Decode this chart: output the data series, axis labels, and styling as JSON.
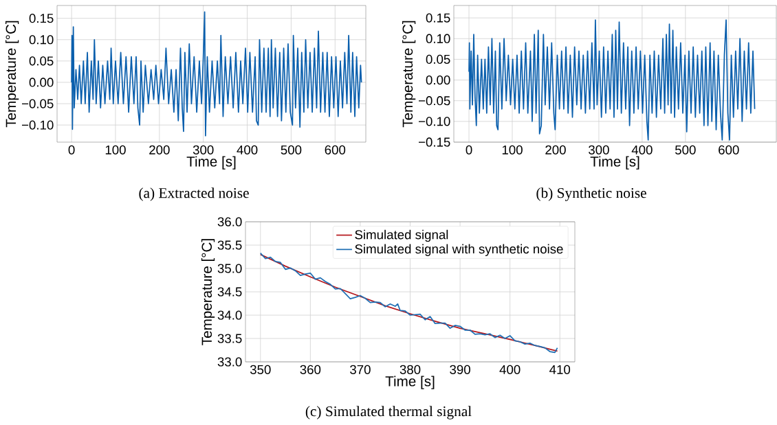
{
  "chart_data": [
    {
      "type": "line",
      "xlabel": "Time [s]",
      "ylabel": "Temperature [°C]",
      "annotations": [
        "(a) Extracted noise"
      ],
      "grid": true,
      "xlim": [
        -33,
        670
      ],
      "ylim": [
        -0.14,
        0.18
      ],
      "xticks": [
        0,
        100,
        200,
        300,
        400,
        500,
        600
      ],
      "yticks": [
        {
          "value": -0.1,
          "label": "−0.10"
        },
        {
          "value": -0.05,
          "label": "−0.05"
        },
        {
          "value": 0,
          "label": "0.00"
        },
        {
          "value": 0.05,
          "label": "0.05"
        },
        {
          "value": 0.1,
          "label": "0.10"
        },
        {
          "value": 0.15,
          "label": "0.15"
        }
      ],
      "series": [
        {
          "color": "#0a5fad",
          "x": [
            0,
            1,
            2,
            4,
            6,
            10,
            14,
            18,
            22,
            27,
            31,
            36,
            40,
            45,
            49,
            52,
            56,
            61,
            66,
            71,
            76,
            82,
            87,
            90,
            95,
            100,
            106,
            112,
            118,
            124,
            130,
            136,
            142,
            147,
            151,
            155,
            158,
            163,
            168,
            175,
            181,
            187,
            192,
            198,
            204,
            210,
            215,
            221,
            227,
            233,
            238,
            243,
            248,
            252,
            255,
            258,
            263,
            268,
            273,
            279,
            285,
            291,
            296,
            300,
            303,
            305,
            309,
            314,
            320,
            326,
            332,
            337,
            340,
            345,
            350,
            356,
            362,
            368,
            374,
            380,
            385,
            390,
            396,
            401,
            406,
            412,
            418,
            421,
            425,
            428,
            433,
            438,
            443,
            448,
            452,
            455,
            459,
            464,
            469,
            474,
            478,
            483,
            488,
            493,
            498,
            503,
            505,
            510,
            515,
            520,
            524,
            529,
            533,
            538,
            543,
            548,
            553,
            558,
            562,
            567,
            572,
            577,
            582,
            587,
            592,
            597,
            602,
            607,
            612,
            617,
            622,
            627,
            631,
            636,
            640,
            645,
            649,
            654,
            658,
            660
          ],
          "values": [
            0.0,
            0.11,
            -0.11,
            0.13,
            -0.06,
            0.03,
            -0.04,
            0.04,
            -0.05,
            0.05,
            -0.05,
            0.07,
            -0.07,
            0.05,
            -0.04,
            0.1,
            -0.05,
            0.05,
            -0.06,
            0.04,
            -0.05,
            0.05,
            -0.04,
            0.08,
            -0.05,
            0.05,
            -0.05,
            0.07,
            -0.05,
            0.06,
            -0.07,
            0.06,
            -0.05,
            0.06,
            -0.06,
            -0.1,
            0.05,
            -0.07,
            0.04,
            -0.05,
            0.03,
            -0.04,
            0.04,
            -0.05,
            0.03,
            -0.04,
            0.08,
            -0.05,
            0.03,
            -0.07,
            0.03,
            -0.09,
            0.08,
            -0.06,
            -0.115,
            0.07,
            -0.07,
            0.09,
            -0.05,
            0.06,
            -0.07,
            0.05,
            -0.05,
            0.06,
            0.165,
            -0.125,
            0.06,
            -0.07,
            0.05,
            -0.06,
            0.05,
            -0.05,
            0.11,
            -0.08,
            0.06,
            -0.05,
            0.06,
            -0.06,
            0.07,
            -0.07,
            0.05,
            -0.05,
            0.08,
            -0.07,
            0.07,
            -0.07,
            0.06,
            -0.09,
            -0.1,
            0.1,
            -0.07,
            0.08,
            -0.07,
            0.08,
            -0.08,
            0.1,
            -0.06,
            0.08,
            -0.08,
            0.07,
            -0.09,
            0.08,
            -0.07,
            0.09,
            -0.07,
            -0.1,
            0.11,
            -0.06,
            0.08,
            -0.105,
            0.07,
            -0.07,
            0.1,
            -0.06,
            0.07,
            -0.07,
            0.08,
            -0.06,
            0.12,
            -0.07,
            0.07,
            -0.07,
            0.07,
            -0.08,
            0.06,
            -0.06,
            0.06,
            -0.08,
            0.05,
            -0.06,
            0.07,
            -0.05,
            0.11,
            -0.07,
            0.07,
            -0.08,
            0.06,
            -0.06,
            0.04,
            0.0
          ]
        }
      ]
    },
    {
      "type": "line",
      "xlabel": "Time [s]",
      "ylabel": "Temperature [°C]",
      "annotations": [
        "(b) Synthetic noise"
      ],
      "grid": true,
      "xlim": [
        -35,
        710
      ],
      "ylim": [
        -0.15,
        0.18
      ],
      "xticks": [
        0,
        100,
        200,
        300,
        400,
        500,
        600
      ],
      "yticks": [
        {
          "value": -0.15,
          "label": "−0.15"
        },
        {
          "value": -0.1,
          "label": "−0.10"
        },
        {
          "value": -0.05,
          "label": "−0.05"
        },
        {
          "value": 0,
          "label": "0.00"
        },
        {
          "value": 0.05,
          "label": "0.05"
        },
        {
          "value": 0.1,
          "label": "0.10"
        },
        {
          "value": 0.15,
          "label": "0.15"
        }
      ],
      "series": [
        {
          "color": "#0a5fad",
          "x": [
            0,
            1,
            2,
            5,
            8,
            11,
            14,
            17,
            20,
            24,
            29,
            33,
            37,
            41,
            45,
            49,
            53,
            57,
            61,
            64,
            67,
            71,
            76,
            81,
            86,
            91,
            96,
            101,
            106,
            111,
            116,
            121,
            126,
            131,
            136,
            142,
            146,
            151,
            155,
            160,
            163,
            167,
            172,
            176,
            181,
            186,
            191,
            196,
            199,
            204,
            209,
            214,
            219,
            224,
            229,
            234,
            239,
            244,
            249,
            254,
            259,
            264,
            269,
            274,
            279,
            284,
            289,
            292,
            296,
            301,
            306,
            311,
            316,
            321,
            326,
            331,
            335,
            339,
            343,
            347,
            352,
            357,
            362,
            367,
            371,
            376,
            381,
            386,
            391,
            396,
            401,
            406,
            411,
            414,
            418,
            423,
            428,
            433,
            438,
            443,
            448,
            452,
            456,
            460,
            463,
            467,
            471,
            475,
            479,
            484,
            489,
            494,
            499,
            503,
            508,
            513,
            518,
            523,
            528,
            533,
            538,
            543,
            547,
            552,
            557,
            561,
            566,
            571,
            576,
            581,
            585,
            590,
            594,
            598,
            602,
            606,
            611,
            616,
            621,
            626,
            631,
            636,
            641,
            646,
            651,
            656,
            660
          ],
          "values": [
            0.02,
            0.09,
            -0.07,
            0.07,
            -0.06,
            0.11,
            -0.04,
            -0.11,
            0.06,
            -0.08,
            0.05,
            -0.07,
            0.05,
            -0.08,
            0.08,
            -0.06,
            0.1,
            -0.08,
            0.07,
            -0.11,
            -0.12,
            0.09,
            -0.07,
            0.1,
            -0.05,
            0.06,
            -0.06,
            0.05,
            -0.07,
            0.06,
            -0.08,
            0.07,
            -0.07,
            0.09,
            -0.08,
            0.07,
            -0.1,
            0.11,
            -0.08,
            0.12,
            -0.13,
            -0.11,
            0.11,
            -0.06,
            0.08,
            -0.07,
            0.09,
            -0.08,
            -0.12,
            0.06,
            -0.07,
            0.07,
            -0.07,
            0.08,
            -0.08,
            0.06,
            -0.09,
            0.08,
            -0.06,
            0.07,
            -0.07,
            0.06,
            -0.08,
            0.07,
            -0.07,
            0.09,
            -0.07,
            0.145,
            -0.06,
            0.07,
            -0.09,
            0.08,
            -0.08,
            0.07,
            -0.07,
            0.11,
            -0.09,
            0.12,
            -0.07,
            0.14,
            -0.08,
            0.09,
            -0.07,
            0.08,
            -0.11,
            0.07,
            -0.08,
            0.08,
            -0.07,
            0.07,
            -0.08,
            0.06,
            -0.1,
            -0.145,
            0.06,
            -0.08,
            0.07,
            -0.09,
            0.06,
            -0.07,
            0.1,
            -0.08,
            0.11,
            -0.06,
            0.135,
            -0.08,
            0.12,
            -0.09,
            0.08,
            -0.07,
            0.09,
            -0.08,
            0.06,
            -0.125,
            0.07,
            -0.08,
            0.08,
            -0.09,
            0.06,
            -0.08,
            0.07,
            -0.11,
            0.08,
            -0.11,
            0.09,
            -0.1,
            0.07,
            -0.12,
            0.06,
            -0.08,
            -0.145,
            0.06,
            0.145,
            -0.08,
            -0.145,
            0.06,
            -0.09,
            0.07,
            -0.07,
            0.1,
            -0.1,
            0.07,
            -0.07,
            0.09,
            -0.08,
            0.07,
            -0.07
          ]
        }
      ]
    },
    {
      "type": "line",
      "xlabel": "Time [s]",
      "ylabel": "Temperature [°C]",
      "annotations": [
        "(c) Simulated thermal signal"
      ],
      "grid": true,
      "legend": "top right",
      "xlim": [
        347,
        413
      ],
      "ylim": [
        33,
        36
      ],
      "xticks": [
        350,
        360,
        370,
        380,
        390,
        400,
        410
      ],
      "yticks": [
        {
          "value": 33,
          "label": "33.0"
        },
        {
          "value": 33.5,
          "label": "33.5"
        },
        {
          "value": 34,
          "label": "34.0"
        },
        {
          "value": 34.5,
          "label": "34.5"
        },
        {
          "value": 35,
          "label": "35.0"
        },
        {
          "value": 35.5,
          "label": "35.5"
        },
        {
          "value": 36,
          "label": "36.0"
        }
      ],
      "series": [
        {
          "name": "Simulated signal",
          "color": "#b5161b",
          "x": [
            350,
            355,
            360,
            365,
            370,
            375,
            380,
            385,
            390,
            395,
            400,
            405,
            409.5
          ],
          "values": [
            35.3,
            35.05,
            34.82,
            34.6,
            34.4,
            34.2,
            34.03,
            33.87,
            33.72,
            33.6,
            33.48,
            33.35,
            33.23
          ]
        },
        {
          "name": "Simulated signal with synthetic noise",
          "color": "#1f6fb4",
          "x": [
            350,
            351,
            352,
            353,
            354,
            355,
            356,
            357,
            358,
            359,
            360,
            361,
            362,
            363,
            364,
            365,
            366,
            367,
            368,
            369,
            370,
            371,
            372,
            373,
            374,
            375,
            376,
            377,
            377.5,
            378,
            379,
            380,
            381,
            382,
            383,
            384,
            385,
            386,
            387,
            388,
            389,
            390,
            391,
            392,
            393,
            394,
            395,
            396,
            397,
            398,
            399,
            400,
            401,
            402,
            403,
            404,
            405,
            406,
            407,
            408,
            409,
            409.5
          ],
          "values": [
            35.33,
            35.21,
            35.24,
            35.15,
            35.13,
            34.98,
            35.01,
            34.95,
            34.85,
            34.88,
            34.9,
            34.77,
            34.8,
            34.72,
            34.66,
            34.56,
            34.57,
            34.46,
            34.35,
            34.38,
            34.42,
            34.36,
            34.27,
            34.28,
            34.27,
            34.18,
            34.24,
            34.19,
            34.24,
            34.1,
            34.09,
            34.0,
            34.01,
            34.02,
            33.9,
            33.97,
            33.82,
            33.83,
            33.83,
            33.72,
            33.78,
            33.76,
            33.68,
            33.68,
            33.59,
            33.6,
            33.58,
            33.6,
            33.52,
            33.57,
            33.5,
            33.56,
            33.45,
            33.43,
            33.38,
            33.4,
            33.35,
            33.33,
            33.3,
            33.22,
            33.2,
            33.3
          ]
        }
      ]
    }
  ]
}
